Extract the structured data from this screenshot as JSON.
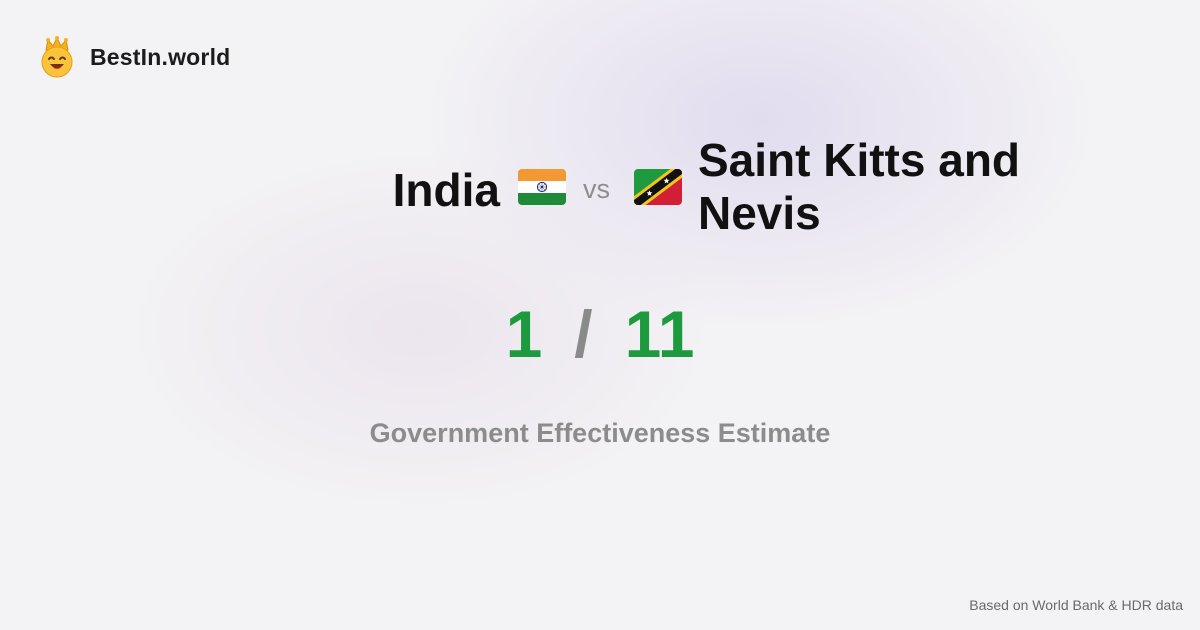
{
  "brand": {
    "name": "BestIn.world",
    "icon": "crown-smiley-icon"
  },
  "comparison": {
    "country_a": {
      "name": "India",
      "flag": "india-flag-icon"
    },
    "vs_label": "vs",
    "country_b": {
      "name": "Saint Kitts and Nevis",
      "flag": "saint-kitts-and-nevis-flag-icon"
    },
    "score_a": "1",
    "separator": "/",
    "score_b": "11",
    "metric": "Government Effectiveness Estimate"
  },
  "footer": {
    "source": "Based on World Bank & HDR data"
  },
  "colors": {
    "score": "#1e9a3e",
    "muted": "#8c8c8c",
    "background": "#f3f2f4"
  }
}
